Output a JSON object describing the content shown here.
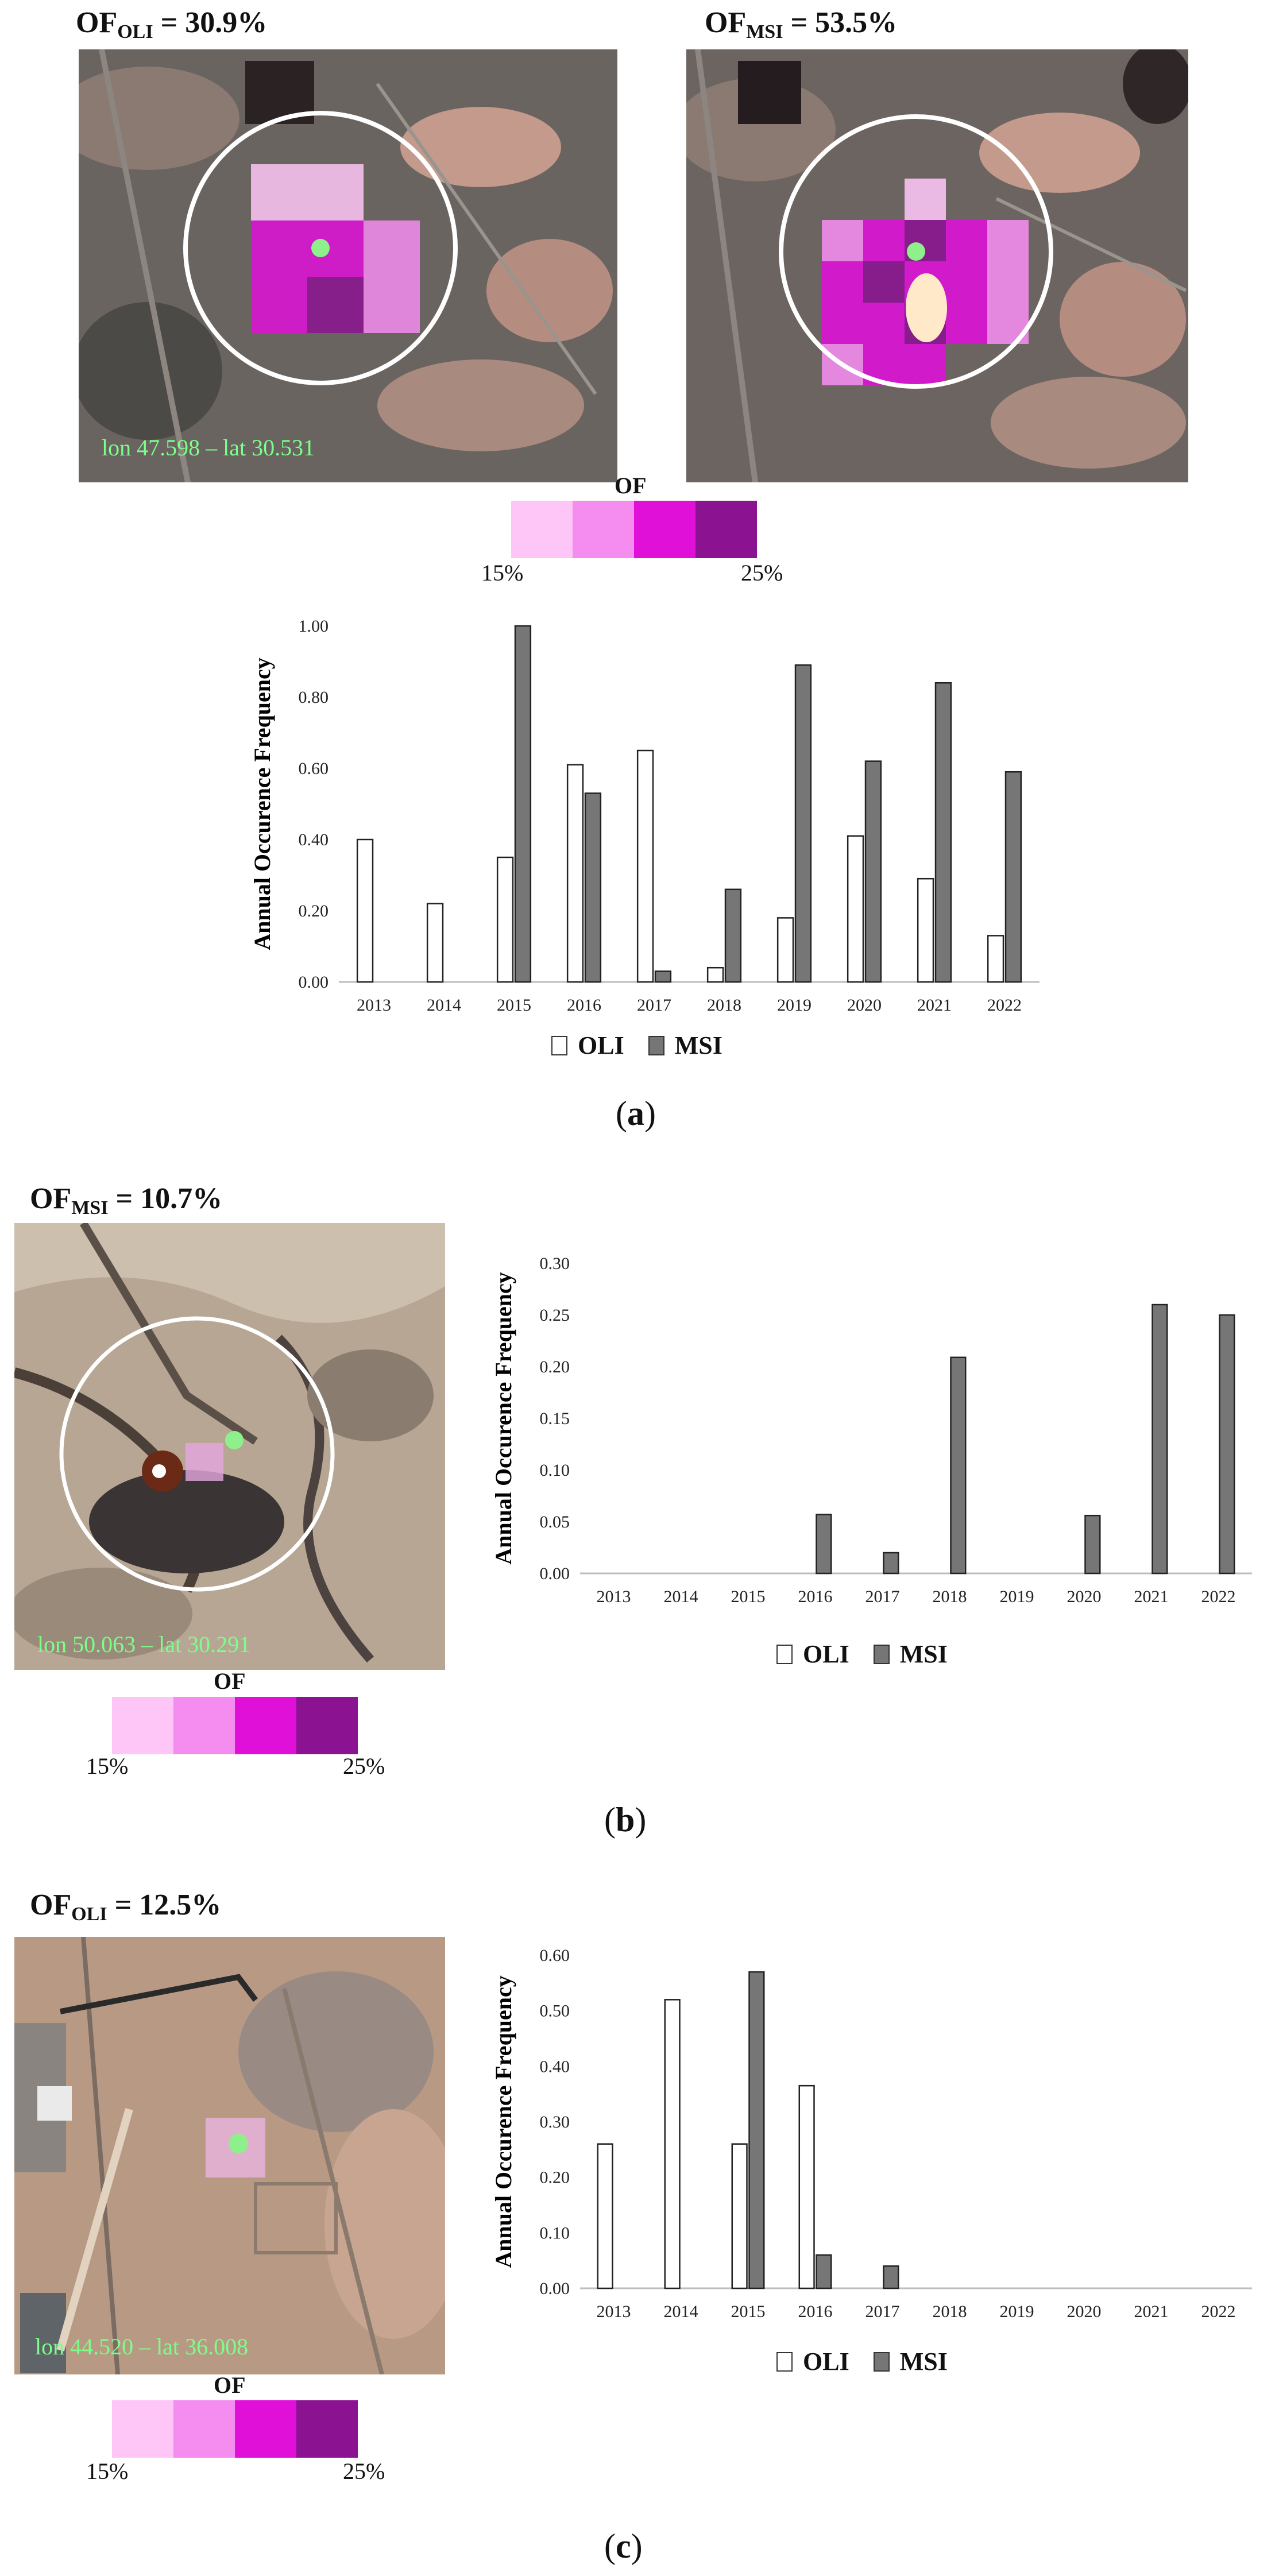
{
  "colors": {
    "oli": "#ffffff",
    "msi": "#767676",
    "coord": "#7CFF8A",
    "scale": [
      "#fdc6f6",
      "#f58cf0",
      "#e010d8",
      "#8b1391"
    ]
  },
  "panels": [
    {
      "label_open": "(",
      "label_letter": "a",
      "label_close": ")",
      "titles": [
        {
          "prefix": "OF",
          "sub": "OLI",
          "value": " = 30.9%"
        },
        {
          "prefix": "OF",
          "sub": "MSI",
          "value": " = 53.5%"
        }
      ],
      "coord": "lon 47.598 – lat 30.531",
      "colorbar": {
        "title": "OF",
        "min": "15%",
        "max": "25%"
      },
      "legend": {
        "oli": "OLI",
        "msi": "MSI"
      },
      "ylabel": "Annual Occurence Frequency"
    },
    {
      "label_open": "(",
      "label_letter": "b",
      "label_close": ")",
      "titles": [
        {
          "prefix": "OF",
          "sub": "MSI",
          "value": " = 10.7%"
        }
      ],
      "coord": "lon 50.063 – lat 30.291",
      "colorbar": {
        "title": "OF",
        "min": "15%",
        "max": "25%"
      },
      "legend": {
        "oli": "OLI",
        "msi": "MSI"
      },
      "ylabel": "Annual Occurence Frequency"
    },
    {
      "label_open": "(",
      "label_letter": "c",
      "label_close": ")",
      "titles": [
        {
          "prefix": "OF",
          "sub": "OLI",
          "value": " = 12.5%"
        }
      ],
      "coord": "lon 44.520 – lat 36.008",
      "colorbar": {
        "title": "OF",
        "min": "15%",
        "max": "25%"
      },
      "legend": {
        "oli": "OLI",
        "msi": "MSI"
      },
      "ylabel": "Annual Occurence Frequency"
    }
  ],
  "chart_data": [
    {
      "type": "bar",
      "ylabel": "Annual Occurence Frequency",
      "categories": [
        "2013",
        "2014",
        "2015",
        "2016",
        "2017",
        "2018",
        "2019",
        "2020",
        "2021",
        "2022"
      ],
      "ylim": [
        0,
        1.0
      ],
      "yticks": [
        "0.00",
        "0.20",
        "0.40",
        "0.60",
        "0.80",
        "1.00"
      ],
      "series": [
        {
          "name": "OLI",
          "values": [
            0.4,
            0.22,
            0.35,
            0.61,
            0.65,
            0.04,
            0.18,
            0.41,
            0.29,
            0.13
          ]
        },
        {
          "name": "MSI",
          "values": [
            0,
            0,
            1.0,
            0.53,
            0.03,
            0.26,
            0.89,
            0.62,
            0.84,
            0.59
          ]
        }
      ],
      "legend": "bottom"
    },
    {
      "type": "bar",
      "ylabel": "Annual Occurence Frequency",
      "categories": [
        "2013",
        "2014",
        "2015",
        "2016",
        "2017",
        "2018",
        "2019",
        "2020",
        "2021",
        "2022"
      ],
      "ylim": [
        0,
        0.3
      ],
      "yticks": [
        "0.00",
        "0.05",
        "0.10",
        "0.15",
        "0.20",
        "0.25",
        "0.30"
      ],
      "series": [
        {
          "name": "OLI",
          "values": [
            0,
            0,
            0,
            0,
            0,
            0,
            0,
            0,
            0,
            0
          ]
        },
        {
          "name": "MSI",
          "values": [
            0,
            0,
            0,
            0.057,
            0.02,
            0.209,
            0,
            0.056,
            0.26,
            0.25
          ]
        }
      ],
      "legend": "bottom"
    },
    {
      "type": "bar",
      "ylabel": "Annual Occurence Frequency",
      "categories": [
        "2013",
        "2014",
        "2015",
        "2016",
        "2017",
        "2018",
        "2019",
        "2020",
        "2021",
        "2022"
      ],
      "ylim": [
        0,
        0.6
      ],
      "yticks": [
        "0.00",
        "0.10",
        "0.20",
        "0.30",
        "0.40",
        "0.50",
        "0.60"
      ],
      "series": [
        {
          "name": "OLI",
          "values": [
            0.26,
            0.52,
            0.26,
            0.365,
            0,
            0,
            0,
            0,
            0,
            0
          ]
        },
        {
          "name": "MSI",
          "values": [
            0,
            0,
            0.57,
            0.06,
            0.04,
            0,
            0,
            0,
            0,
            0
          ]
        }
      ],
      "legend": "bottom"
    }
  ]
}
